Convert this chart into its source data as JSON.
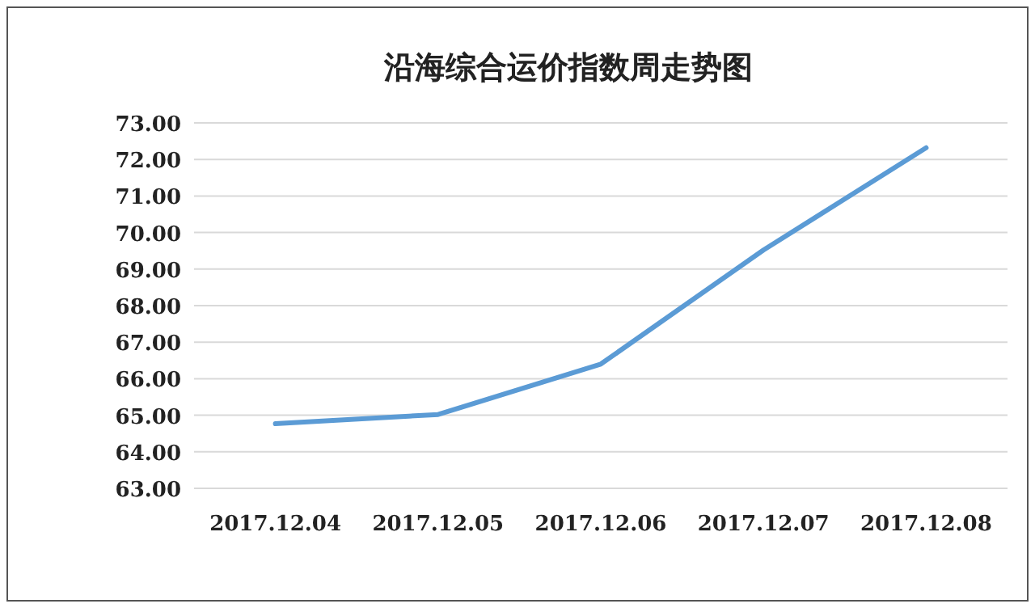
{
  "chart_data": {
    "type": "line",
    "title": "沿海综合运价指数周走势图",
    "categories": [
      "2017.12.04",
      "2017.12.05",
      "2017.12.06",
      "2017.12.07",
      "2017.12.08"
    ],
    "series": [
      {
        "color": "#5b9bd5",
        "values": [
          64.77,
          65.02,
          66.4,
          69.52,
          72.32
        ]
      }
    ],
    "ylim": [
      63,
      73
    ],
    "yticks": [
      {
        "value": 63,
        "label": "63.00"
      },
      {
        "value": 64,
        "label": "64.00"
      },
      {
        "value": 65,
        "label": "65.00"
      },
      {
        "value": 66,
        "label": "66.00"
      },
      {
        "value": 67,
        "label": "67.00"
      },
      {
        "value": 68,
        "label": "68.00"
      },
      {
        "value": 69,
        "label": "69.00"
      },
      {
        "value": 70,
        "label": "70.00"
      },
      {
        "value": 71,
        "label": "71.00"
      },
      {
        "value": 72,
        "label": "72.00"
      },
      {
        "value": 73,
        "label": "73.00"
      }
    ],
    "grid": "y",
    "marker": "none",
    "line_style": "solid"
  }
}
